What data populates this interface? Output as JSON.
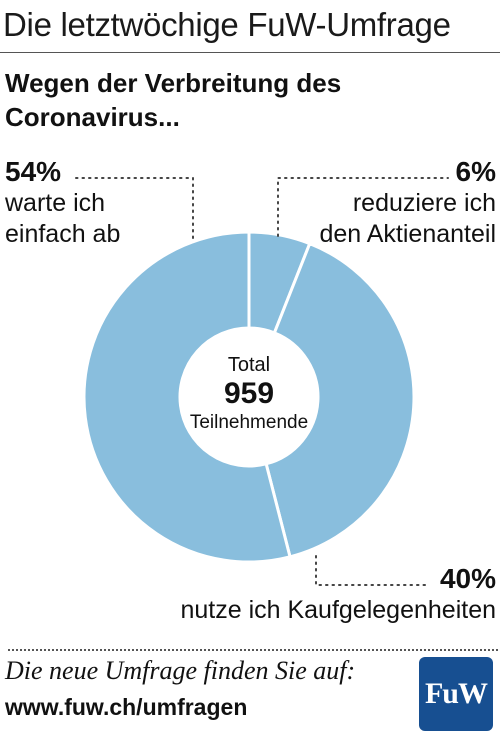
{
  "header": {
    "title": "Die letztwöchige FuW-Umfrage"
  },
  "subtitle": {
    "line1": "Wegen der Verbreitung des",
    "line2": "Coronavirus..."
  },
  "chart_data": {
    "type": "pie",
    "style": "donut",
    "center": {
      "label_top": "Total",
      "value": "959",
      "label_bottom": "Teilnehmende"
    },
    "slices": [
      {
        "pct_label": "6%",
        "value": 6,
        "label_lines": [
          "reduziere ich",
          "den Aktienanteil"
        ]
      },
      {
        "pct_label": "40%",
        "value": 40,
        "label_lines": [
          "nutze ich Kaufgelegenheiten"
        ]
      },
      {
        "pct_label": "54%",
        "value": 54,
        "label_lines": [
          "warte ich",
          "einfach ab"
        ]
      }
    ],
    "slice_color": "#89bedd",
    "separator_color": "#ffffff"
  },
  "footer": {
    "note": "Die neue Umfrage finden Sie auf:",
    "url": "www.fuw.ch/umfragen",
    "logo_text": "FuW",
    "logo_color": "#174f91"
  }
}
